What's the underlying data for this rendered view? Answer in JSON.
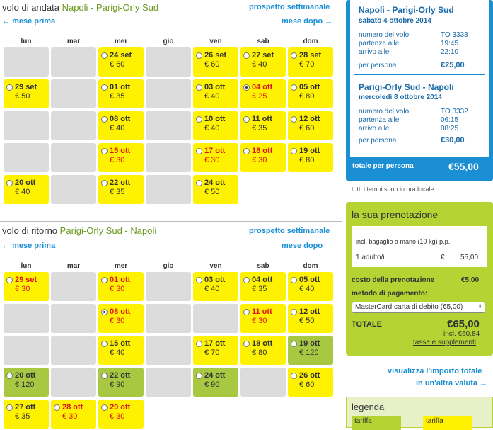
{
  "outbound": {
    "title_prefix": "volo di andata",
    "route": "Napoli - Parigi-Orly Sud",
    "weekly_link": "prospetto settimanale",
    "prev_month": "mese prima",
    "next_month": "mese dopo",
    "days": [
      "lun",
      "mar",
      "mer",
      "gio",
      "ven",
      "sab",
      "dom"
    ],
    "cells": [
      {
        "col": 2,
        "row": 0,
        "date": "24 set",
        "price": "€ 60",
        "style": "y"
      },
      {
        "col": 4,
        "row": 0,
        "date": "26 set",
        "price": "€ 60",
        "style": "y"
      },
      {
        "col": 5,
        "row": 0,
        "date": "27 set",
        "price": "€ 40",
        "style": "y"
      },
      {
        "col": 6,
        "row": 0,
        "date": "28 set",
        "price": "€ 70",
        "style": "y"
      },
      {
        "col": 0,
        "row": 1,
        "date": "29 set",
        "price": "€ 50",
        "style": "y"
      },
      {
        "col": 2,
        "row": 1,
        "date": "01 ott",
        "price": "€ 35",
        "style": "y"
      },
      {
        "col": 4,
        "row": 1,
        "date": "03 ott",
        "price": "€ 40",
        "style": "y"
      },
      {
        "col": 5,
        "row": 1,
        "date": "04 ott",
        "price": "€ 25",
        "style": "y",
        "red": true,
        "selected": true
      },
      {
        "col": 6,
        "row": 1,
        "date": "05 ott",
        "price": "€ 80",
        "style": "y"
      },
      {
        "col": 2,
        "row": 2,
        "date": "08 ott",
        "price": "€ 40",
        "style": "y"
      },
      {
        "col": 4,
        "row": 2,
        "date": "10 ott",
        "price": "€ 40",
        "style": "y"
      },
      {
        "col": 5,
        "row": 2,
        "date": "11 ott",
        "price": "€ 35",
        "style": "y"
      },
      {
        "col": 6,
        "row": 2,
        "date": "12 ott",
        "price": "€ 60",
        "style": "y"
      },
      {
        "col": 2,
        "row": 3,
        "date": "15 ott",
        "price": "€ 30",
        "style": "y",
        "red": true
      },
      {
        "col": 4,
        "row": 3,
        "date": "17 ott",
        "price": "€ 30",
        "style": "y",
        "red": true
      },
      {
        "col": 5,
        "row": 3,
        "date": "18 ott",
        "price": "€ 30",
        "style": "y",
        "red": true
      },
      {
        "col": 6,
        "row": 3,
        "date": "19 ott",
        "price": "€ 80",
        "style": "y"
      },
      {
        "col": 0,
        "row": 4,
        "date": "20 ott",
        "price": "€ 40",
        "style": "y"
      },
      {
        "col": 2,
        "row": 4,
        "date": "22 ott",
        "price": "€ 35",
        "style": "y"
      },
      {
        "col": 4,
        "row": 4,
        "date": "24 ott",
        "price": "€ 50",
        "style": "y"
      }
    ]
  },
  "return": {
    "title_prefix": "volo di ritorno",
    "route": "Parigi-Orly Sud - Napoli",
    "weekly_link": "prospetto settimanale",
    "prev_month": "mese prima",
    "next_month": "mese dopo",
    "days": [
      "lun",
      "mar",
      "mer",
      "gio",
      "ven",
      "sab",
      "dom"
    ],
    "cells": [
      {
        "col": 0,
        "row": 0,
        "date": "29 set",
        "price": "€ 30",
        "style": "y",
        "red": true
      },
      {
        "col": 2,
        "row": 0,
        "date": "01 ott",
        "price": "€ 30",
        "style": "y",
        "red": true
      },
      {
        "col": 4,
        "row": 0,
        "date": "03 ott",
        "price": "€ 40",
        "style": "y"
      },
      {
        "col": 5,
        "row": 0,
        "date": "04 ott",
        "price": "€ 35",
        "style": "y"
      },
      {
        "col": 6,
        "row": 0,
        "date": "05 ott",
        "price": "€ 40",
        "style": "y"
      },
      {
        "col": 2,
        "row": 1,
        "date": "08 ott",
        "price": "€ 30",
        "style": "y",
        "red": true,
        "selected": true
      },
      {
        "col": 5,
        "row": 1,
        "date": "11 ott",
        "price": "€ 30",
        "style": "y",
        "red": true
      },
      {
        "col": 6,
        "row": 1,
        "date": "12 ott",
        "price": "€ 50",
        "style": "y"
      },
      {
        "col": 2,
        "row": 2,
        "date": "15 ott",
        "price": "€ 40",
        "style": "y"
      },
      {
        "col": 4,
        "row": 2,
        "date": "17 ott",
        "price": "€ 70",
        "style": "y"
      },
      {
        "col": 5,
        "row": 2,
        "date": "18 ott",
        "price": "€ 80",
        "style": "y"
      },
      {
        "col": 6,
        "row": 2,
        "date": "19 ott",
        "price": "€ 120",
        "style": "gr"
      },
      {
        "col": 0,
        "row": 3,
        "date": "20 ott",
        "price": "€ 120",
        "style": "gr"
      },
      {
        "col": 2,
        "row": 3,
        "date": "22 ott",
        "price": "€ 90",
        "style": "gr"
      },
      {
        "col": 4,
        "row": 3,
        "date": "24 ott",
        "price": "€ 90",
        "style": "gr"
      },
      {
        "col": 6,
        "row": 3,
        "date": "26 ott",
        "price": "€ 60",
        "style": "y"
      },
      {
        "col": 0,
        "row": 4,
        "date": "27 ott",
        "price": "€ 35",
        "style": "y"
      },
      {
        "col": 1,
        "row": 4,
        "date": "28 ott",
        "price": "€ 30",
        "style": "y",
        "red": true
      },
      {
        "col": 2,
        "row": 4,
        "date": "29 ott",
        "price": "€ 30",
        "style": "y",
        "red": true
      }
    ]
  },
  "summary": {
    "out": {
      "title": "Napoli - Parigi-Orly Sud",
      "date": "sabato 4 ottobre 2014",
      "flight_label": "numero del volo",
      "flight_value": "TO  3333",
      "dep_label": "partenza alle",
      "dep_value": "19:45",
      "arr_label": "arrivo alle",
      "arr_value": "22:10",
      "pp_label": "per persona",
      "pp_value": "€25,00"
    },
    "ret": {
      "title": "Parigi-Orly Sud - Napoli",
      "date": "mercoledì 8 ottobre 2014",
      "flight_label": "numero del volo",
      "flight_value": "TO  3332",
      "dep_label": "partenza alle",
      "dep_value": "06:15",
      "arr_label": "arrivo alle",
      "arr_value": "08:25",
      "pp_label": "per persona",
      "pp_value": "€30,00"
    },
    "total_label": "totale per persona",
    "total_value": "€55,00",
    "tz_note": "tutti i tempi sono in ora locale"
  },
  "booking": {
    "title": "la sua prenotazione",
    "baggage": "incl. bagaglio a mano (10 kg) p.p.",
    "adults_label": "1  adulto/i",
    "adults_cur": "€",
    "adults_value": "55,00",
    "fee_label": "costo della prenotazione",
    "fee_value": "€5,00",
    "pay_label": "metodo di pagamento:",
    "pay_selected": "MasterCard carta di debito (€5,00)",
    "total_label": "TOTALE",
    "total_value": "€65,00",
    "incl": "incl. €60,84",
    "taxes_link": "tasse e supplementi"
  },
  "currency_link_1": "visualizza l'importo totale",
  "currency_link_2": "in un'altra valuta",
  "legend": {
    "title": "legenda",
    "item1": "tariffa",
    "item2": "tariffa"
  }
}
